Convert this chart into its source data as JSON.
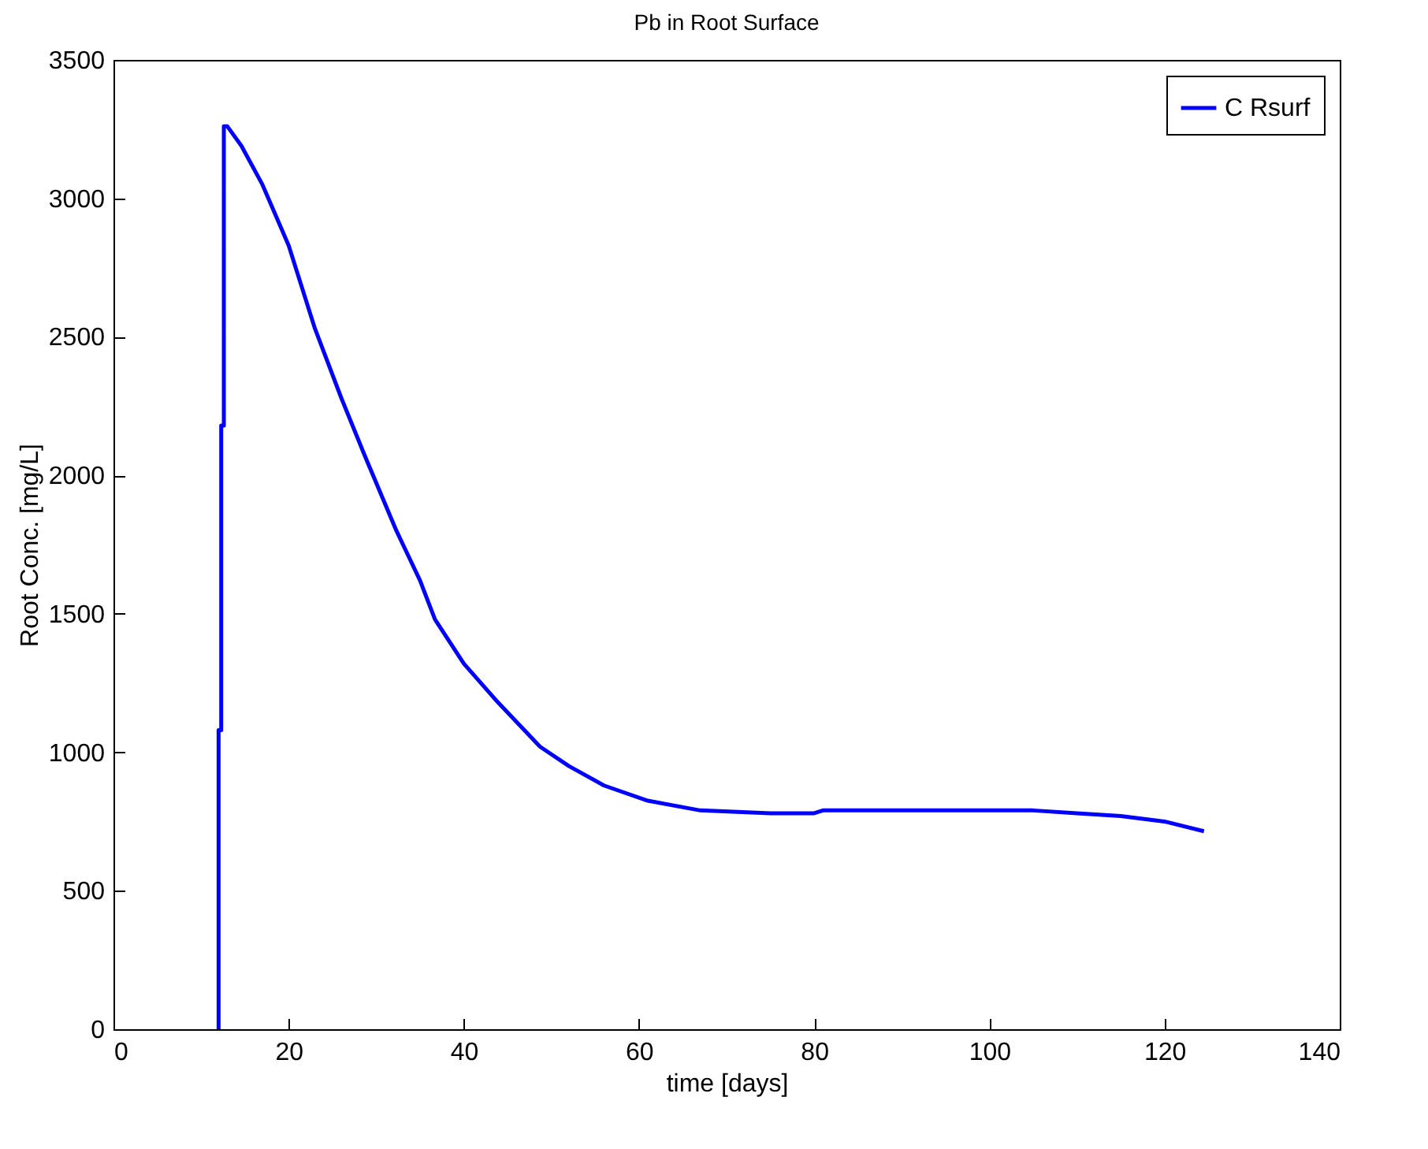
{
  "chart_data": {
    "type": "line",
    "title": "Pb in Root Surface",
    "xlabel": "time [days]",
    "ylabel": "Root Conc. [mg/L]",
    "xlim": [
      0,
      140
    ],
    "xticks": [
      0,
      20,
      40,
      60,
      80,
      100,
      120,
      140
    ],
    "ylim": [
      0,
      3500
    ],
    "yticks": [
      0,
      500,
      1000,
      1500,
      2000,
      2500,
      3000,
      3500
    ],
    "grid": false,
    "legend": "top right",
    "marker": "none",
    "line_style": "solid",
    "x": [
      12,
      12,
      12.3,
      12.3,
      12.6,
      12.6,
      13,
      14.6,
      17,
      20,
      23,
      26,
      28.7,
      32.3,
      35,
      36.7,
      40,
      43.9,
      48.7,
      52,
      56,
      61,
      67,
      75,
      80,
      81,
      105,
      110,
      115,
      120,
      124.5
    ],
    "series": [
      {
        "name": "C Rsurf",
        "color": "#0000ff",
        "values": [
          0,
          1080,
          1080,
          2180,
          2180,
          3260,
          3260,
          3190,
          3050,
          2830,
          2530,
          2280,
          2070,
          1800,
          1620,
          1480,
          1320,
          1180,
          1020,
          950,
          880,
          825,
          790,
          780,
          780,
          790,
          790,
          780,
          770,
          750,
          715
        ]
      }
    ]
  }
}
